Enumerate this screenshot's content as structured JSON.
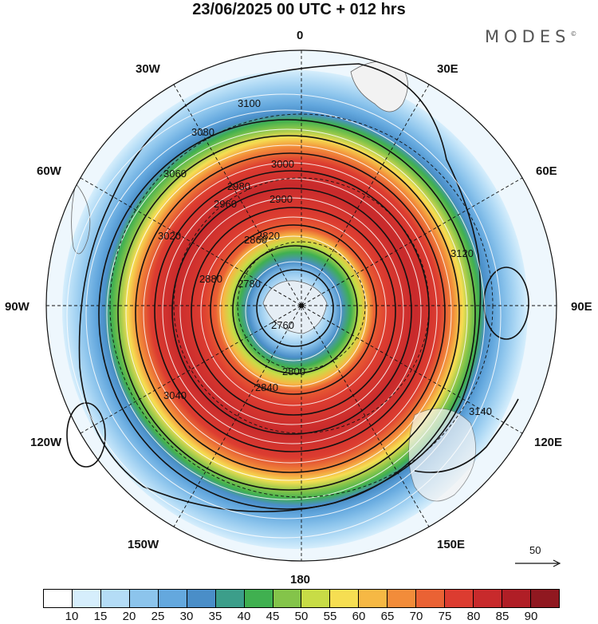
{
  "title": "23/06/2025  00 UTC  + 012 hrs",
  "brand": "MODES",
  "brand_mark": "©",
  "longitude_labels": {
    "n0": "0",
    "e30": "30E",
    "e60": "60E",
    "e90": "90E",
    "e120": "120E",
    "e150": "150E",
    "s180": "180",
    "w150": "150W",
    "w120": "120W",
    "w90": "90W",
    "w60": "60W",
    "w30": "30W"
  },
  "contour_labels": [
    "3100",
    "3080",
    "3060",
    "3020",
    "3000",
    "2980",
    "2960",
    "2900",
    "2880",
    "2860",
    "2840",
    "2820",
    "2800",
    "2780",
    "2760",
    "3040",
    "3120",
    "3140"
  ],
  "wind_scale": {
    "label": "50",
    "units_arrow": "reference-vector-arrow"
  },
  "colorbar": {
    "colors": [
      "#ffffff",
      "#d6eefc",
      "#b4dcf6",
      "#8cc4ec",
      "#64a8de",
      "#4a8ec8",
      "#3c9e8a",
      "#40b050",
      "#84c44a",
      "#c8dc46",
      "#f6de52",
      "#f6b844",
      "#f28c3a",
      "#ea6234",
      "#dc3c30",
      "#c82a2c",
      "#b01e26",
      "#901820"
    ],
    "tick_labels": [
      "10",
      "15",
      "20",
      "25",
      "30",
      "35",
      "40",
      "45",
      "50",
      "55",
      "60",
      "65",
      "70",
      "75",
      "80",
      "85",
      "90"
    ]
  },
  "field_colors": {
    "outer_light": "#d6eefc",
    "light_blue": "#b4dcf6",
    "mid_blue": "#8cc4ec",
    "blue": "#64a8de",
    "dark_blue": "#4a8ec8",
    "teal": "#3c9e8a",
    "green": "#40b050",
    "yellow_green": "#84c44a",
    "yellow": "#f6de52",
    "orange": "#f28c3a",
    "red": "#dc3c30",
    "dark_red": "#b01e26"
  }
}
